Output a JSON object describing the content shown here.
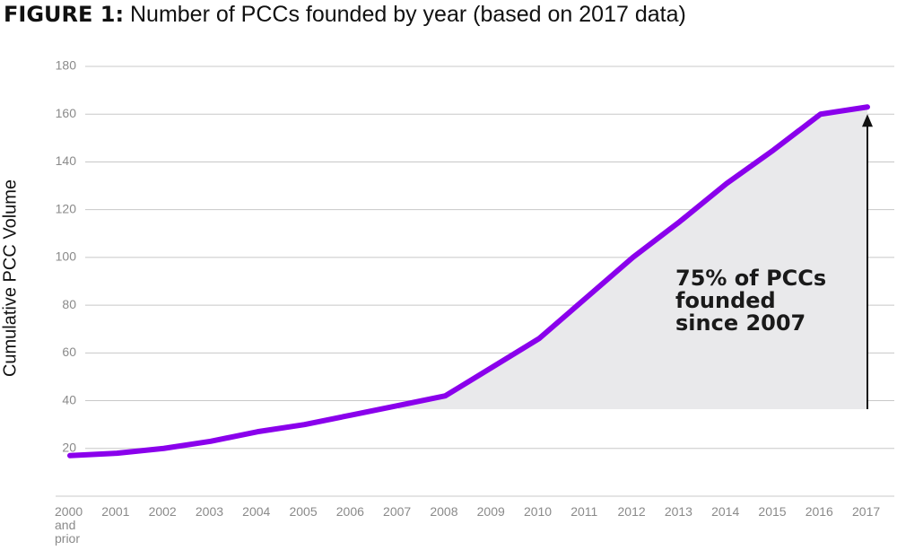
{
  "chart_data": {
    "type": "line",
    "title_label": "FIGURE 1:",
    "title": "Number of PCCs founded by year (based on 2017 data)",
    "y_axis_label": "Cumulative PCC Volume",
    "categories": [
      "2000 and prior",
      "2001",
      "2002",
      "2003",
      "2004",
      "2005",
      "2006",
      "2007",
      "2008",
      "2009",
      "2010",
      "2011",
      "2012",
      "2013",
      "2014",
      "2015",
      "2016",
      "2017"
    ],
    "series": [
      {
        "color": "#8a00ec",
        "values": [
          17,
          18,
          20,
          23,
          27,
          30,
          34,
          38,
          42,
          54,
          66,
          83,
          100,
          115,
          131,
          145,
          160,
          163
        ]
      }
    ],
    "ylim": [
      0,
      180
    ],
    "yticks": [
      20,
      40,
      60,
      80,
      100,
      120,
      140,
      160,
      180
    ],
    "grid": true,
    "annotation": [
      "75% of PCCs",
      "founded",
      "since 2007"
    ]
  }
}
